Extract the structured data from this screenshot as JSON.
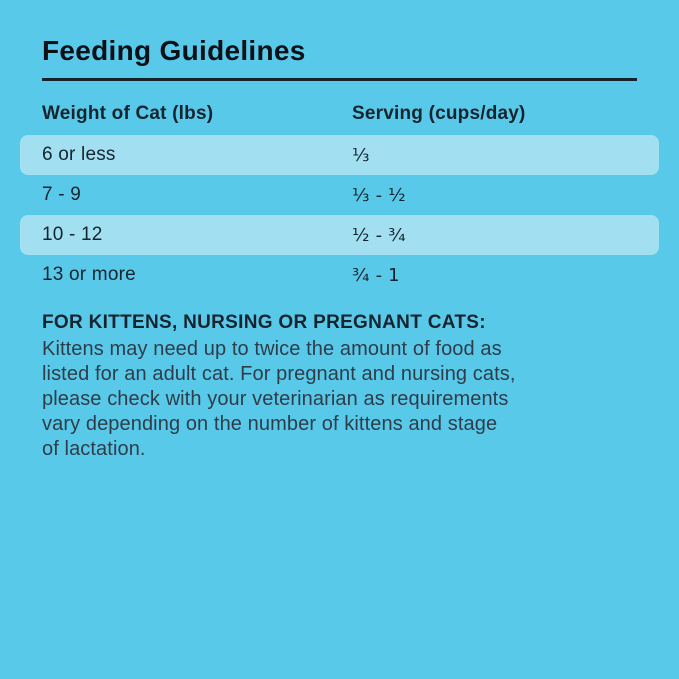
{
  "page": {
    "title": "Feeding Guidelines"
  },
  "table": {
    "columns": [
      {
        "label": "Weight of Cat (lbs)"
      },
      {
        "label": "Serving (cups/day)"
      }
    ],
    "rows": [
      {
        "weight": "6 or less",
        "serving": "⅓",
        "striped": true
      },
      {
        "weight": "7 - 9",
        "serving": "⅓ - ½",
        "striped": false
      },
      {
        "weight": "10 - 12",
        "serving": "½ - ¾",
        "striped": true
      },
      {
        "weight": "13 or more",
        "serving": "¾ - 1",
        "striped": false
      }
    ]
  },
  "note": {
    "heading": "FOR KITTENS, NURSING OR PREGNANT CATS:",
    "body": "Kittens may need up to twice the amount of food as listed for an adult cat. For pregnant and nursing cats, please check with your veterinarian as requirements vary depending on the number of kittens and stage of lactation.",
    "lines": [
      "Kittens may need up to twice the amount of food as",
      "listed for an adult cat. For pregnant and nursing cats,",
      "please check with your veterinarian as requirements",
      "vary depending on the number of kittens and stage",
      "of lactation."
    ]
  },
  "colors": {
    "background": "#59c9e9",
    "row_stripe": "#a2e0f1",
    "title_text": "#0d1117",
    "table_text": "#16242f",
    "note_text": "#2e3d49",
    "rule": "#14222c"
  }
}
